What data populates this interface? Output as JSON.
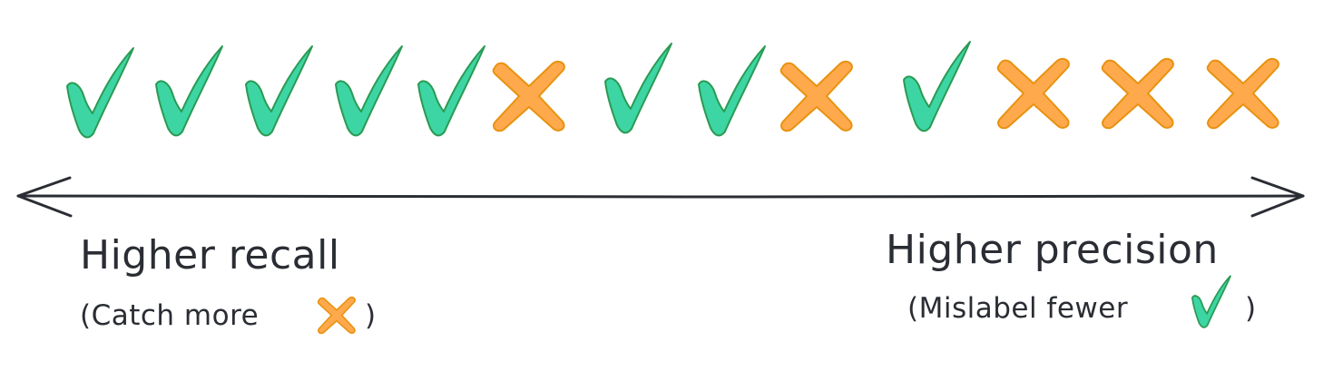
{
  "marks": [
    "check",
    "check",
    "check",
    "check",
    "check",
    "cross",
    "check",
    "check",
    "cross",
    "check",
    "cross",
    "cross",
    "cross"
  ],
  "colors": {
    "check_fill": "#3dd5a3",
    "check_stroke": "#2a9a54",
    "cross_fill": "#ffa94d",
    "cross_stroke": "#e8920f",
    "axis": "#2a2d33",
    "text": "#2a2d33"
  },
  "left": {
    "title": "Higher recall",
    "subtitle_before": "(Catch more",
    "subtitle_icon": "cross-icon",
    "subtitle_after": ")"
  },
  "right": {
    "title": "Higher precision",
    "subtitle_before": "(Mislabel fewer",
    "subtitle_icon": "check-icon",
    "subtitle_after": ")"
  },
  "axis": {
    "arrows": "both-directions"
  }
}
